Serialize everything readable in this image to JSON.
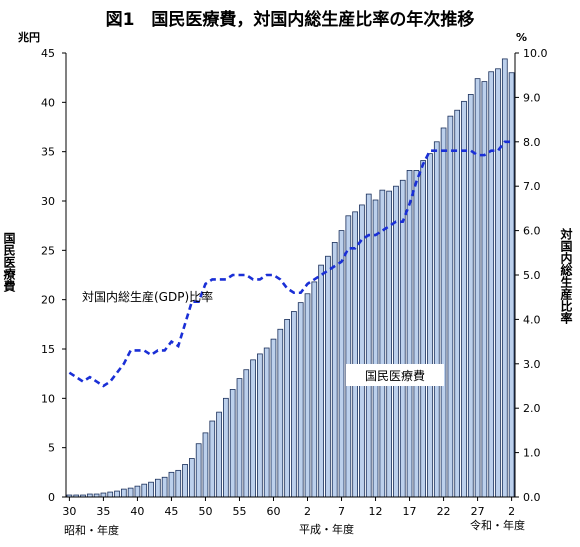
{
  "chart_data": {
    "type": "bar",
    "title": "図1　国民医療費，対国内総生産比率の年次推移",
    "left_axis": {
      "unit": "兆円",
      "label": "国民医療費",
      "range": [
        0,
        45
      ],
      "ticks": [
        "0",
        "5",
        "10",
        "15",
        "20",
        "25",
        "30",
        "35",
        "40",
        "45"
      ]
    },
    "right_axis": {
      "unit": "%",
      "label": "対国内総生産比率",
      "range": [
        0,
        10
      ],
      "ticks": [
        "0.0",
        "1.0",
        "2.0",
        "3.0",
        "4.0",
        "5.0",
        "6.0",
        "7.0",
        "8.0",
        "9.0",
        "10.0"
      ]
    },
    "x_tick_labels": [
      "30",
      "35",
      "40",
      "45",
      "50",
      "55",
      "60",
      "2",
      "7",
      "12",
      "17",
      "22",
      "27",
      "2"
    ],
    "x_tick_positions": [
      1955,
      1960,
      1965,
      1970,
      1975,
      1980,
      1985,
      1990,
      1995,
      2000,
      2005,
      2010,
      2015,
      2020
    ],
    "era_labels": {
      "showa": "昭和・年度",
      "heisei": "平成・年度",
      "reiwa": "令和・年度"
    },
    "x_range": [
      1954.5,
      2020.5
    ],
    "grid": false,
    "series": [
      {
        "name": "国民医療費",
        "type": "bar",
        "axis": "left",
        "x": [
          1955,
          1956,
          1957,
          1958,
          1959,
          1960,
          1961,
          1962,
          1963,
          1964,
          1965,
          1966,
          1967,
          1968,
          1969,
          1970,
          1971,
          1972,
          1973,
          1974,
          1975,
          1976,
          1977,
          1978,
          1979,
          1980,
          1981,
          1982,
          1983,
          1984,
          1985,
          1986,
          1987,
          1988,
          1989,
          1990,
          1991,
          1992,
          1993,
          1994,
          1995,
          1996,
          1997,
          1998,
          1999,
          2000,
          2001,
          2002,
          2003,
          2004,
          2005,
          2006,
          2007,
          2008,
          2009,
          2010,
          2011,
          2012,
          2013,
          2014,
          2015,
          2016,
          2017,
          2018,
          2019,
          2020
        ],
        "values": [
          0.2,
          0.2,
          0.2,
          0.3,
          0.3,
          0.4,
          0.5,
          0.6,
          0.8,
          0.9,
          1.1,
          1.3,
          1.5,
          1.8,
          2.0,
          2.5,
          2.7,
          3.3,
          3.9,
          5.4,
          6.5,
          7.7,
          8.6,
          10.0,
          10.9,
          12.0,
          12.9,
          13.9,
          14.5,
          15.1,
          16.0,
          17.0,
          18.0,
          18.8,
          19.7,
          20.6,
          21.8,
          23.5,
          24.4,
          25.8,
          27.0,
          28.5,
          28.9,
          29.6,
          30.7,
          30.1,
          31.1,
          31.0,
          31.5,
          32.1,
          33.1,
          33.1,
          34.1,
          34.8,
          36.0,
          37.4,
          38.6,
          39.2,
          40.1,
          40.8,
          42.4,
          42.1,
          43.1,
          43.4,
          44.4,
          43.0
        ]
      },
      {
        "name": "対国内総生産(GDP)比率",
        "type": "line",
        "style": "dashed",
        "axis": "right",
        "x": [
          1955,
          1956,
          1957,
          1958,
          1959,
          1960,
          1961,
          1962,
          1963,
          1964,
          1965,
          1966,
          1967,
          1968,
          1969,
          1970,
          1971,
          1972,
          1973,
          1974,
          1975,
          1976,
          1977,
          1978,
          1979,
          1980,
          1981,
          1982,
          1983,
          1984,
          1985,
          1986,
          1987,
          1988,
          1989,
          1990,
          1991,
          1992,
          1993,
          1994,
          1995,
          1996,
          1997,
          1998,
          1999,
          2000,
          2001,
          2002,
          2003,
          2004,
          2005,
          2006,
          2007,
          2008,
          2009,
          2010,
          2011,
          2012,
          2013,
          2014,
          2015,
          2016,
          2017,
          2018,
          2019,
          2020
        ],
        "values": [
          2.8,
          2.7,
          2.6,
          2.7,
          2.6,
          2.5,
          2.6,
          2.8,
          3.0,
          3.3,
          3.3,
          3.3,
          3.2,
          3.3,
          3.3,
          3.5,
          3.4,
          3.9,
          4.4,
          4.4,
          4.8,
          4.9,
          4.9,
          4.9,
          5.0,
          5.0,
          5.0,
          4.9,
          4.9,
          5.0,
          5.0,
          4.9,
          4.7,
          4.6,
          4.6,
          4.8,
          4.9,
          5.0,
          5.1,
          5.2,
          5.3,
          5.6,
          5.6,
          5.8,
          5.9,
          5.9,
          6.0,
          6.1,
          6.2,
          6.2,
          6.6,
          7.1,
          7.5,
          7.8,
          7.8,
          7.8,
          7.8,
          7.8,
          7.8,
          7.8,
          7.7,
          7.7,
          7.8,
          7.8,
          8.0,
          8.0
        ]
      }
    ],
    "annotations": {
      "line_label": "対国内総生産(GDP)比率",
      "bar_label": "国民医療費"
    },
    "colors": {
      "bar_fill": "#bcd0ec",
      "bar_stroke": "#1a2f5a",
      "line": "#1a2fd6"
    }
  }
}
